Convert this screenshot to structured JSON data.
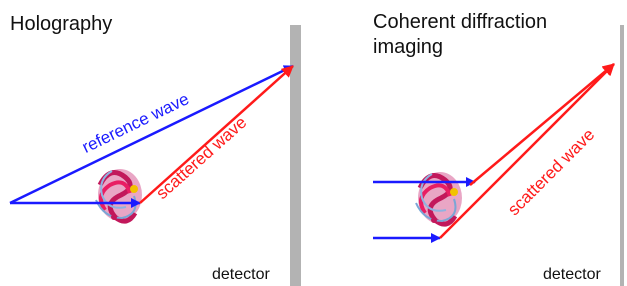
{
  "panels": [
    {
      "title": "Holography",
      "labels": [
        "reference wave",
        "scattered wave"
      ],
      "detector": "detector"
    },
    {
      "title": "Coherent diffraction imaging",
      "labels": [
        "scattered wave"
      ],
      "detector": "detector"
    }
  ]
}
